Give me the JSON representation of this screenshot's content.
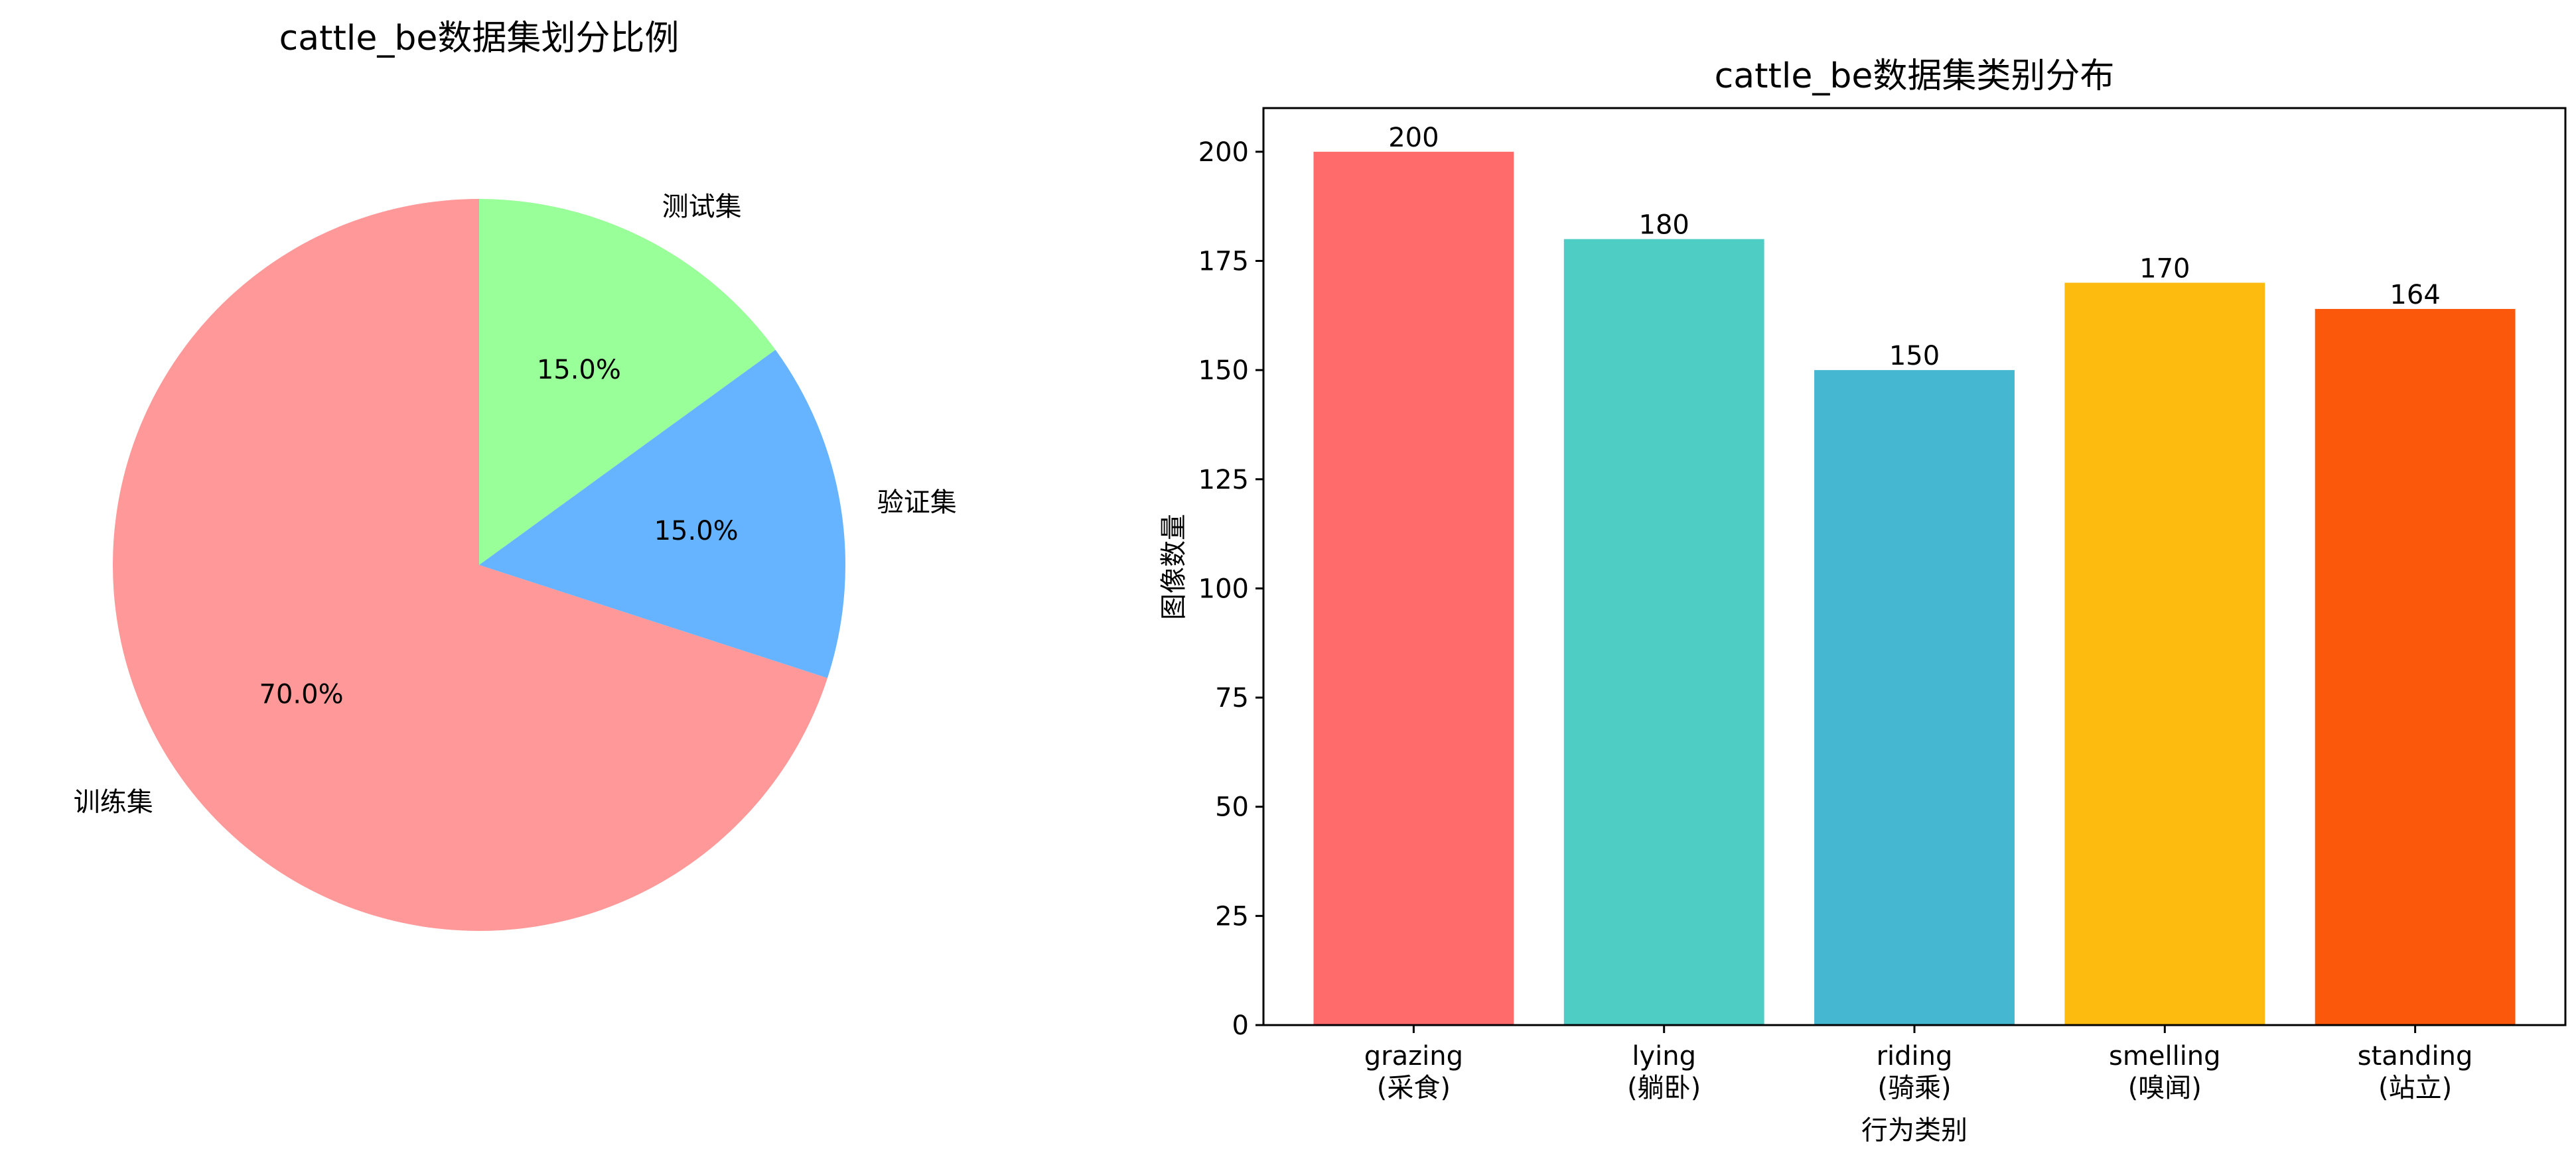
{
  "chart_data": [
    {
      "type": "pie",
      "title": "cattle_be数据集划分比例",
      "labels": [
        "训练集",
        "验证集",
        "测试集"
      ],
      "values": [
        70.0,
        15.0,
        15.0
      ],
      "pct_labels": [
        "70.0%",
        "15.0%",
        "15.0%"
      ],
      "colors": [
        "#ff9999",
        "#66b3ff",
        "#99ff99"
      ],
      "start_angle_deg": 90,
      "direction": "counterclockwise"
    },
    {
      "type": "bar",
      "title": "cattle_be数据集类别分布",
      "categories": [
        "grazing\n(采食)",
        "lying\n(躺卧)",
        "riding\n(骑乘)",
        "smelling\n(嗅闻)",
        "standing\n(站立)"
      ],
      "values": [
        200,
        180,
        150,
        170,
        164
      ],
      "value_labels": [
        "200",
        "180",
        "150",
        "170",
        "164"
      ],
      "colors": [
        "#ff6b6b",
        "#4ecdc4",
        "#45b7d1",
        "#fdbb10",
        "#fc580c"
      ],
      "xlabel": "行为类别",
      "ylabel": "图像数量",
      "ylim": [
        0,
        210
      ],
      "yticks": [
        0,
        25,
        50,
        75,
        100,
        125,
        150,
        175,
        200
      ],
      "ytick_labels": [
        "0",
        "25",
        "50",
        "75",
        "100",
        "125",
        "150",
        "175",
        "200"
      ],
      "grid": false,
      "legend": "none"
    }
  ]
}
